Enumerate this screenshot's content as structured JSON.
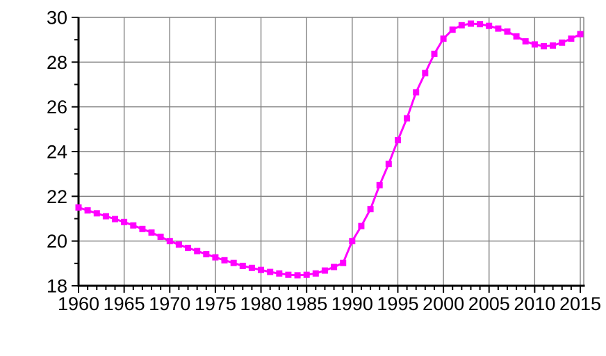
{
  "chart_data": {
    "type": "line",
    "title": "",
    "xlabel": "",
    "ylabel": "",
    "legend_position": "none",
    "grid": true,
    "x_range": [
      1960,
      2015
    ],
    "y_range": [
      18,
      30
    ],
    "x_major_tick_step": 5,
    "x_minor_tick_step": 1,
    "y_major_tick_step": 2,
    "y_minor_tick_step": 1,
    "x_tick_labels": [
      "1960",
      "1965",
      "1970",
      "1975",
      "1980",
      "1985",
      "1990",
      "1995",
      "2000",
      "2005",
      "2010",
      "2015"
    ],
    "y_tick_labels": [
      "18",
      "20",
      "22",
      "24",
      "26",
      "28",
      "30"
    ],
    "series": [
      {
        "name": "series-1",
        "color": "#ff00ff",
        "marker": "square",
        "x": [
          1960,
          1961,
          1962,
          1963,
          1964,
          1965,
          1966,
          1967,
          1968,
          1969,
          1970,
          1971,
          1972,
          1973,
          1974,
          1975,
          1976,
          1977,
          1978,
          1979,
          1980,
          1981,
          1982,
          1983,
          1984,
          1985,
          1986,
          1987,
          1988,
          1989,
          1990,
          1991,
          1992,
          1993,
          1994,
          1995,
          1996,
          1997,
          1998,
          1999,
          2000,
          2001,
          2002,
          2003,
          2004,
          2005,
          2006,
          2007,
          2008,
          2009,
          2010,
          2011,
          2012,
          2013,
          2014,
          2015
        ],
        "values": [
          21.5,
          21.37,
          21.24,
          21.11,
          20.98,
          20.85,
          20.7,
          20.54,
          20.38,
          20.19,
          20.0,
          19.84,
          19.69,
          19.55,
          19.41,
          19.27,
          19.14,
          19.02,
          18.89,
          18.8,
          18.71,
          18.62,
          18.55,
          18.49,
          18.47,
          18.49,
          18.55,
          18.68,
          18.84,
          19.02,
          20.0,
          20.67,
          21.43,
          22.5,
          23.45,
          24.51,
          25.49,
          26.65,
          27.51,
          28.37,
          29.05,
          29.45,
          29.65,
          29.72,
          29.7,
          29.62,
          29.5,
          29.37,
          29.15,
          28.93,
          28.79,
          28.71,
          28.74,
          28.87,
          29.05,
          29.25
        ]
      }
    ]
  },
  "colors": {
    "line": "#ff00ff",
    "grid": "#808080",
    "frame": "#808080",
    "axis": "#000000",
    "tick": "#000000",
    "tick_label": "#000000",
    "background": "#ffffff"
  }
}
